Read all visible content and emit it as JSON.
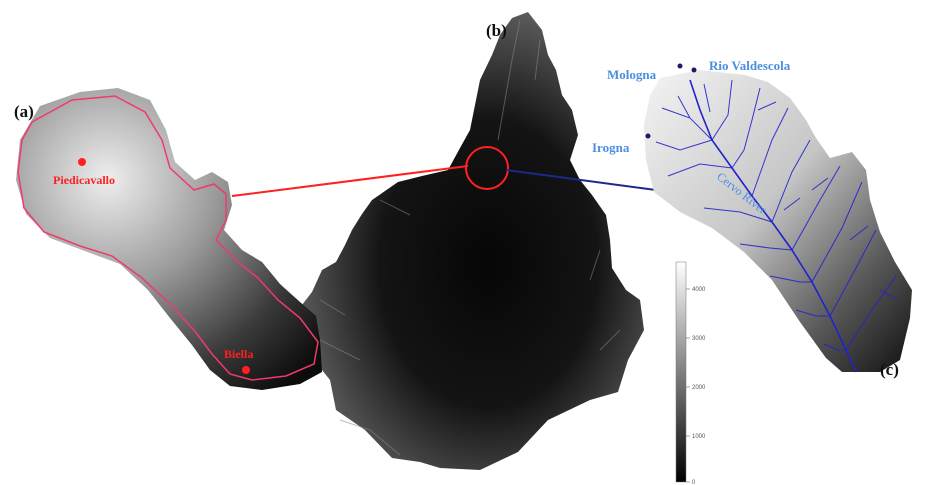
{
  "panels": {
    "a": {
      "label": "(a)"
    },
    "b": {
      "label": "(b)"
    },
    "c": {
      "label": "(c)"
    }
  },
  "basin_a": {
    "towns": [
      {
        "name": "Piedicavallo"
      },
      {
        "name": "Biella"
      }
    ]
  },
  "basin_c": {
    "labels": {
      "mologna": "Mologna",
      "rio_valdescola": "Rio Valdescola",
      "irogna": "Irogna",
      "main_river": "Cervo River"
    }
  },
  "legend": {
    "ticks": [
      "4000",
      "3000",
      "2000",
      "1000",
      "0"
    ]
  },
  "colors": {
    "boundary": "#f03a6a",
    "town": "#ff2020",
    "connector_a": "#ff2020",
    "connector_c": "#1a2a8a",
    "river": "#2222cc",
    "label_blue": "#4a8fe0"
  }
}
